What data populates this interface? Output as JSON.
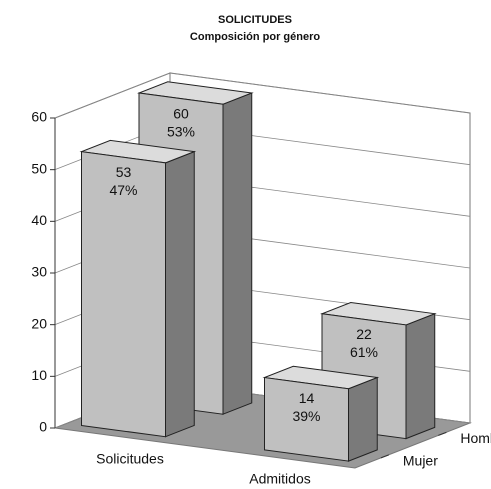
{
  "chart_data": {
    "type": "bar3d",
    "title": "SOLICITUDES",
    "subtitle": "Composición por género",
    "categories": [
      "Solicitudes",
      "Admitidos"
    ],
    "series": [
      {
        "name": "Mujer",
        "color": "#c0c0c0",
        "values": [
          53,
          14
        ],
        "share_labels": [
          "47%",
          "39%"
        ]
      },
      {
        "name": "Hombre",
        "color": "#c0c0c0",
        "values": [
          60,
          22
        ],
        "share_labels": [
          "53%",
          "61%"
        ]
      }
    ],
    "ylim": [
      0,
      60
    ],
    "yticks": [
      0,
      10,
      20,
      30,
      40,
      50,
      60
    ],
    "grid": true
  }
}
